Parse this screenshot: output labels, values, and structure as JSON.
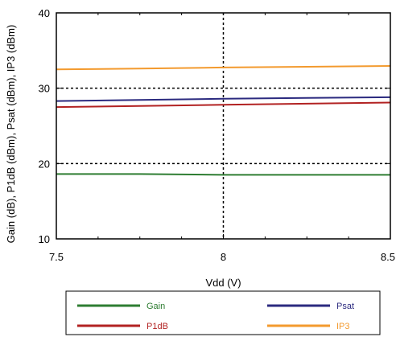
{
  "chart_data": {
    "type": "line",
    "xlabel": "Vdd  (V)",
    "ylabel": "Gain (dB), P1dB (dBm), Psat (dBm), IP3 (dBm)",
    "xlim": [
      7.5,
      8.5
    ],
    "ylim": [
      10,
      40
    ],
    "x_ticks": [
      7.5,
      8,
      8.5
    ],
    "x_tick_labels": [
      "7.5",
      "8",
      "8.5"
    ],
    "y_ticks": [
      10,
      20,
      30,
      40
    ],
    "y_tick_labels": [
      "10",
      "20",
      "30",
      "40"
    ],
    "grid": "dashed at x=8, y=20, y=30",
    "legend_position": "bottom",
    "series": [
      {
        "name": "Gain",
        "color": "#2e7d32",
        "x": [
          7.5,
          7.75,
          8,
          8.25,
          8.5
        ],
        "y": [
          18.6,
          18.6,
          18.5,
          18.5,
          18.5
        ]
      },
      {
        "name": "Psat",
        "color": "#2b2a7f",
        "x": [
          7.5,
          7.75,
          8,
          8.25,
          8.5
        ],
        "y": [
          28.3,
          28.45,
          28.6,
          28.7,
          28.8
        ]
      },
      {
        "name": "P1dB",
        "color": "#b22222",
        "x": [
          7.5,
          7.75,
          8,
          8.25,
          8.5
        ],
        "y": [
          27.5,
          27.65,
          27.8,
          27.95,
          28.1
        ]
      },
      {
        "name": "IP3",
        "color": "#f39a2e",
        "x": [
          7.5,
          7.75,
          8,
          8.25,
          8.5
        ],
        "y": [
          32.5,
          32.6,
          32.75,
          32.85,
          32.95
        ]
      }
    ]
  }
}
